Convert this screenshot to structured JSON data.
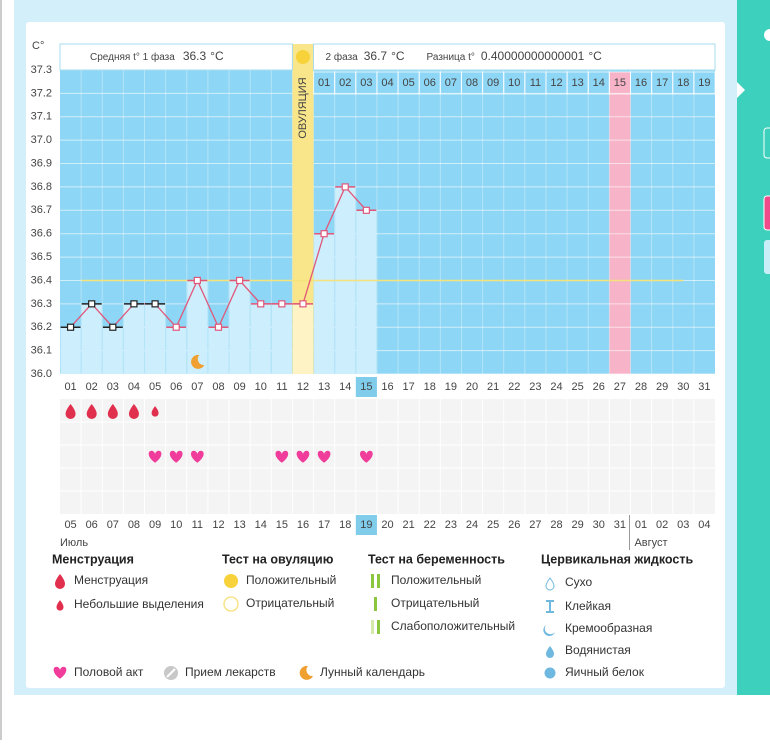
{
  "chart_data": {
    "type": "bbt",
    "y_unit": "C°",
    "phase1_label": "Средняя t° 1 фаза",
    "phase1_value": 36.3,
    "unit": "°C",
    "phase2_label": "2 фаза",
    "phase2_value": 36.7,
    "diff_label": "Разница t°",
    "diff_value": 0.40000000000001,
    "ovulation_label": "ОВУЛЯЦИЯ",
    "ovulation_day": "12",
    "predicted_day": "27",
    "today": "15",
    "categories": [
      "01",
      "02",
      "03",
      "04",
      "05",
      "06",
      "07",
      "08",
      "09",
      "10",
      "11",
      "12",
      "13",
      "14",
      "15",
      "16",
      "17",
      "18",
      "19",
      "20",
      "21",
      "22",
      "23",
      "24",
      "25",
      "26",
      "27",
      "28",
      "29",
      "30",
      "31"
    ],
    "cycle_days_after_ovulation": [
      null,
      null,
      null,
      null,
      null,
      null,
      null,
      null,
      null,
      null,
      null,
      null,
      "01",
      "02",
      "03",
      "04",
      "05",
      "06",
      "07",
      "08",
      "09",
      "10",
      "11",
      "12",
      "13",
      "14",
      "15",
      "16",
      "17",
      "18",
      "19"
    ],
    "dates": [
      "05",
      "06",
      "07",
      "08",
      "09",
      "10",
      "11",
      "12",
      "13",
      "14",
      "15",
      "16",
      "17",
      "18",
      "19",
      "20",
      "21",
      "22",
      "23",
      "24",
      "25",
      "26",
      "27",
      "28",
      "29",
      "30",
      "31",
      "01",
      "02",
      "03",
      "04"
    ],
    "date_colors": [
      "#e0245e",
      "#444",
      "#444",
      "#444",
      "#444",
      "#444",
      "#e0245e",
      "#e0245e",
      "#444",
      "#444",
      "#444",
      "#444",
      "#444",
      "#e0245e",
      "#444",
      "#444",
      "#444",
      "#444",
      "#444",
      "#444",
      "#e0245e",
      "#e0245e",
      "#444",
      "#444",
      "#444",
      "#444",
      "#444",
      "#e0245e",
      "#e0245e",
      "#444",
      "#444"
    ],
    "months": [
      "Июль",
      "Август"
    ],
    "values": [
      36.2,
      36.3,
      36.2,
      36.3,
      36.3,
      36.2,
      36.4,
      36.2,
      36.4,
      36.3,
      36.3,
      36.3,
      36.6,
      36.8,
      36.7,
      null,
      null,
      null,
      null,
      null,
      null,
      null,
      null,
      null,
      null,
      null,
      null,
      null,
      null,
      null,
      null
    ],
    "line_color": "#e0577a",
    "coverline": 36.4,
    "ylim": [
      36.0,
      37.3
    ],
    "yticks": [
      {
        "value": 36,
        "label": "36.0"
      },
      36.1,
      36.2,
      36.3,
      36.4,
      36.5,
      36.6,
      36.7,
      36.8,
      36.9,
      {
        "value": 37,
        "label": "37.0"
      },
      37.1,
      37.2,
      37.3
    ],
    "events": {
      "menstruation": [
        "01",
        "02",
        "03",
        "04"
      ],
      "spotting": [
        "05"
      ],
      "intercourse": [
        "05",
        "06",
        "07",
        "11",
        "12",
        "13",
        "15"
      ],
      "moon": [
        "07"
      ]
    }
  },
  "legend": {
    "menstruation": {
      "title": "Менструация",
      "items": [
        "Менструация",
        "Небольшие выделения"
      ]
    },
    "ovulation_test": {
      "title": "Тест на овуляцию",
      "items": [
        "Положительный",
        "Отрицательный"
      ]
    },
    "pregnancy_test": {
      "title": "Тест на беременность",
      "items": [
        "Положительный",
        "Отрицательный",
        "Слабоположительный"
      ]
    },
    "cervical_fluid": {
      "title": "Цервикальная жидкость",
      "items": [
        "Сухо",
        "Клейкая",
        "Кремообразная",
        "Водянистая",
        "Яичный белок"
      ]
    },
    "other": [
      "Половой акт",
      "Прием лекарств",
      "Лунный календарь"
    ]
  }
}
